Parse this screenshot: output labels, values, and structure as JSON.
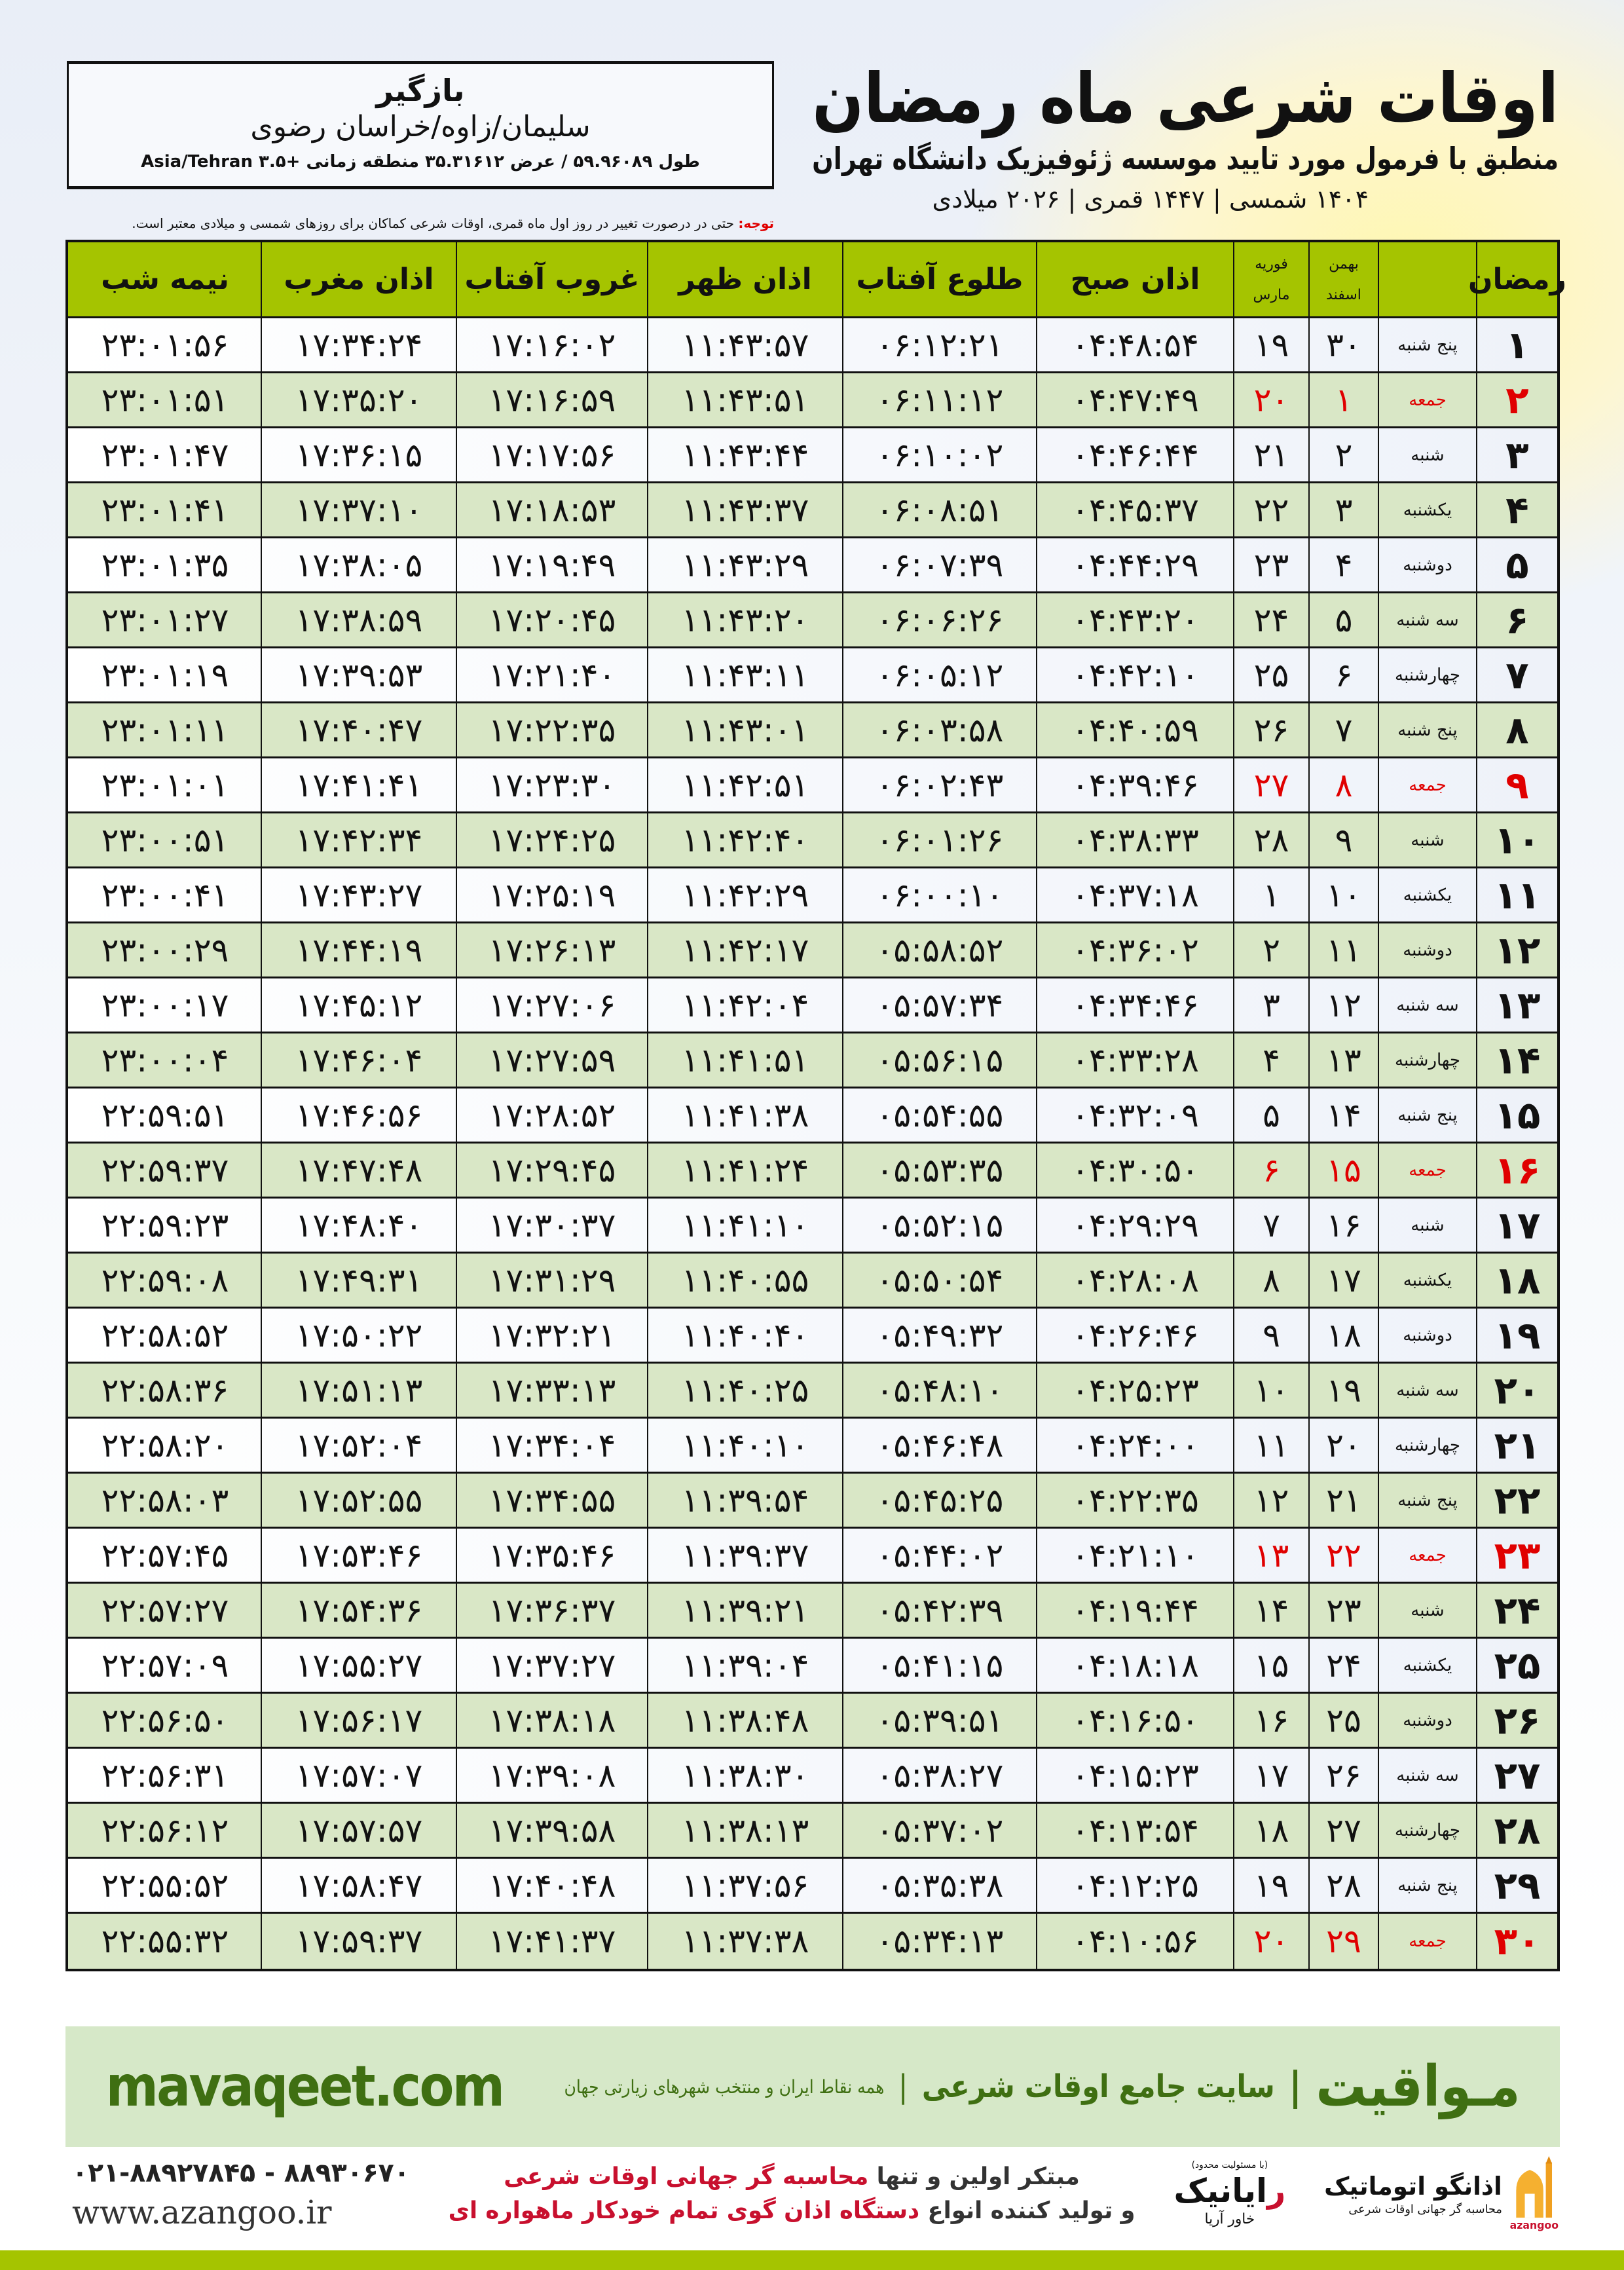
{
  "location_box": {
    "city": "بازگیر",
    "region": "سلیمان/زاوه/خراسان رضوی",
    "coordinates": "طول ۵۹.۹۶۰۸۹ / عرض ۳۵.۳۱۶۱۲ منطقه زمانی +۳.۵ Asia/Tehran"
  },
  "header": {
    "title": "اوقات شرعی ماه رمضان",
    "subtitle": "منطبق با فرمول مورد تایید موسسه ژئوفیزیک دانشگاه تهران",
    "dates": "۱۴۰۴ شمسی | ۱۴۴۷ قمری | ۲۰۲۶ میلادی"
  },
  "note": {
    "label": "توجه:",
    "text": " حتی در درصورت تغییر در روز اول ماه قمری، اوقات شرعی کماکان برای روزهای شمسی و میلادی معتبر است."
  },
  "colors": {
    "header_green": "#a5c400",
    "row_green": "#d9e7c6",
    "friday_red": "#e00000",
    "brand_green": "#3f6f12"
  },
  "table": {
    "columns": {
      "ramadan": "رمضان",
      "shamsi_top": "بهمن",
      "shamsi_bottom": "اسفند",
      "gregorian_top": "فوریه",
      "gregorian_bottom": "مارس",
      "fajr": "اذان صبح",
      "sunrise": "طلوع آفتاب",
      "dhuhr": "اذان ظهر",
      "sunset": "غروب آفتاب",
      "maghrib": "اذان مغرب",
      "midnight": "نیمه شب"
    },
    "rows": [
      {
        "ramadan": "۱",
        "weekday": "پنج شنبه",
        "shamsi": "۳۰",
        "gregorian": "۱۹",
        "fajr": "۰۴:۴۸:۵۴",
        "sunrise": "۰۶:۱۲:۲۱",
        "dhuhr": "۱۱:۴۳:۵۷",
        "sunset": "۱۷:۱۶:۰۲",
        "maghrib": "۱۷:۳۴:۲۴",
        "midnight": "۲۳:۰۱:۵۶",
        "friday": false
      },
      {
        "ramadan": "۲",
        "weekday": "جمعه",
        "shamsi": "۱",
        "gregorian": "۲۰",
        "fajr": "۰۴:۴۷:۴۹",
        "sunrise": "۰۶:۱۱:۱۲",
        "dhuhr": "۱۱:۴۳:۵۱",
        "sunset": "۱۷:۱۶:۵۹",
        "maghrib": "۱۷:۳۵:۲۰",
        "midnight": "۲۳:۰۱:۵۱",
        "friday": true
      },
      {
        "ramadan": "۳",
        "weekday": "شنبه",
        "shamsi": "۲",
        "gregorian": "۲۱",
        "fajr": "۰۴:۴۶:۴۴",
        "sunrise": "۰۶:۱۰:۰۲",
        "dhuhr": "۱۱:۴۳:۴۴",
        "sunset": "۱۷:۱۷:۵۶",
        "maghrib": "۱۷:۳۶:۱۵",
        "midnight": "۲۳:۰۱:۴۷",
        "friday": false
      },
      {
        "ramadan": "۴",
        "weekday": "یکشنبه",
        "shamsi": "۳",
        "gregorian": "۲۲",
        "fajr": "۰۴:۴۵:۳۷",
        "sunrise": "۰۶:۰۸:۵۱",
        "dhuhr": "۱۱:۴۳:۳۷",
        "sunset": "۱۷:۱۸:۵۳",
        "maghrib": "۱۷:۳۷:۱۰",
        "midnight": "۲۳:۰۱:۴۱",
        "friday": false
      },
      {
        "ramadan": "۵",
        "weekday": "دوشنبه",
        "shamsi": "۴",
        "gregorian": "۲۳",
        "fajr": "۰۴:۴۴:۲۹",
        "sunrise": "۰۶:۰۷:۳۹",
        "dhuhr": "۱۱:۴۳:۲۹",
        "sunset": "۱۷:۱۹:۴۹",
        "maghrib": "۱۷:۳۸:۰۵",
        "midnight": "۲۳:۰۱:۳۵",
        "friday": false
      },
      {
        "ramadan": "۶",
        "weekday": "سه شنبه",
        "shamsi": "۵",
        "gregorian": "۲۴",
        "fajr": "۰۴:۴۳:۲۰",
        "sunrise": "۰۶:۰۶:۲۶",
        "dhuhr": "۱۱:۴۳:۲۰",
        "sunset": "۱۷:۲۰:۴۵",
        "maghrib": "۱۷:۳۸:۵۹",
        "midnight": "۲۳:۰۱:۲۷",
        "friday": false
      },
      {
        "ramadan": "۷",
        "weekday": "چهارشنبه",
        "shamsi": "۶",
        "gregorian": "۲۵",
        "fajr": "۰۴:۴۲:۱۰",
        "sunrise": "۰۶:۰۵:۱۲",
        "dhuhr": "۱۱:۴۳:۱۱",
        "sunset": "۱۷:۲۱:۴۰",
        "maghrib": "۱۷:۳۹:۵۳",
        "midnight": "۲۳:۰۱:۱۹",
        "friday": false
      },
      {
        "ramadan": "۸",
        "weekday": "پنج شنبه",
        "shamsi": "۷",
        "gregorian": "۲۶",
        "fajr": "۰۴:۴۰:۵۹",
        "sunrise": "۰۶:۰۳:۵۸",
        "dhuhr": "۱۱:۴۳:۰۱",
        "sunset": "۱۷:۲۲:۳۵",
        "maghrib": "۱۷:۴۰:۴۷",
        "midnight": "۲۳:۰۱:۱۱",
        "friday": false
      },
      {
        "ramadan": "۹",
        "weekday": "جمعه",
        "shamsi": "۸",
        "gregorian": "۲۷",
        "fajr": "۰۴:۳۹:۴۶",
        "sunrise": "۰۶:۰۲:۴۳",
        "dhuhr": "۱۱:۴۲:۵۱",
        "sunset": "۱۷:۲۳:۳۰",
        "maghrib": "۱۷:۴۱:۴۱",
        "midnight": "۲۳:۰۱:۰۱",
        "friday": true
      },
      {
        "ramadan": "۱۰",
        "weekday": "شنبه",
        "shamsi": "۹",
        "gregorian": "۲۸",
        "fajr": "۰۴:۳۸:۳۳",
        "sunrise": "۰۶:۰۱:۲۶",
        "dhuhr": "۱۱:۴۲:۴۰",
        "sunset": "۱۷:۲۴:۲۵",
        "maghrib": "۱۷:۴۲:۳۴",
        "midnight": "۲۳:۰۰:۵۱",
        "friday": false
      },
      {
        "ramadan": "۱۱",
        "weekday": "یکشنبه",
        "shamsi": "۱۰",
        "gregorian": "۱",
        "fajr": "۰۴:۳۷:۱۸",
        "sunrise": "۰۶:۰۰:۱۰",
        "dhuhr": "۱۱:۴۲:۲۹",
        "sunset": "۱۷:۲۵:۱۹",
        "maghrib": "۱۷:۴۳:۲۷",
        "midnight": "۲۳:۰۰:۴۱",
        "friday": false
      },
      {
        "ramadan": "۱۲",
        "weekday": "دوشنبه",
        "shamsi": "۱۱",
        "gregorian": "۲",
        "fajr": "۰۴:۳۶:۰۲",
        "sunrise": "۰۵:۵۸:۵۲",
        "dhuhr": "۱۱:۴۲:۱۷",
        "sunset": "۱۷:۲۶:۱۳",
        "maghrib": "۱۷:۴۴:۱۹",
        "midnight": "۲۳:۰۰:۲۹",
        "friday": false
      },
      {
        "ramadan": "۱۳",
        "weekday": "سه شنبه",
        "shamsi": "۱۲",
        "gregorian": "۳",
        "fajr": "۰۴:۳۴:۴۶",
        "sunrise": "۰۵:۵۷:۳۴",
        "dhuhr": "۱۱:۴۲:۰۴",
        "sunset": "۱۷:۲۷:۰۶",
        "maghrib": "۱۷:۴۵:۱۲",
        "midnight": "۲۳:۰۰:۱۷",
        "friday": false
      },
      {
        "ramadan": "۱۴",
        "weekday": "چهارشنبه",
        "shamsi": "۱۳",
        "gregorian": "۴",
        "fajr": "۰۴:۳۳:۲۸",
        "sunrise": "۰۵:۵۶:۱۵",
        "dhuhr": "۱۱:۴۱:۵۱",
        "sunset": "۱۷:۲۷:۵۹",
        "maghrib": "۱۷:۴۶:۰۴",
        "midnight": "۲۳:۰۰:۰۴",
        "friday": false
      },
      {
        "ramadan": "۱۵",
        "weekday": "پنج شنبه",
        "shamsi": "۱۴",
        "gregorian": "۵",
        "fajr": "۰۴:۳۲:۰۹",
        "sunrise": "۰۵:۵۴:۵۵",
        "dhuhr": "۱۱:۴۱:۳۸",
        "sunset": "۱۷:۲۸:۵۲",
        "maghrib": "۱۷:۴۶:۵۶",
        "midnight": "۲۲:۵۹:۵۱",
        "friday": false
      },
      {
        "ramadan": "۱۶",
        "weekday": "جمعه",
        "shamsi": "۱۵",
        "gregorian": "۶",
        "fajr": "۰۴:۳۰:۵۰",
        "sunrise": "۰۵:۵۳:۳۵",
        "dhuhr": "۱۱:۴۱:۲۴",
        "sunset": "۱۷:۲۹:۴۵",
        "maghrib": "۱۷:۴۷:۴۸",
        "midnight": "۲۲:۵۹:۳۷",
        "friday": true
      },
      {
        "ramadan": "۱۷",
        "weekday": "شنبه",
        "shamsi": "۱۶",
        "gregorian": "۷",
        "fajr": "۰۴:۲۹:۲۹",
        "sunrise": "۰۵:۵۲:۱۵",
        "dhuhr": "۱۱:۴۱:۱۰",
        "sunset": "۱۷:۳۰:۳۷",
        "maghrib": "۱۷:۴۸:۴۰",
        "midnight": "۲۲:۵۹:۲۳",
        "friday": false
      },
      {
        "ramadan": "۱۸",
        "weekday": "یکشنبه",
        "shamsi": "۱۷",
        "gregorian": "۸",
        "fajr": "۰۴:۲۸:۰۸",
        "sunrise": "۰۵:۵۰:۵۴",
        "dhuhr": "۱۱:۴۰:۵۵",
        "sunset": "۱۷:۳۱:۲۹",
        "maghrib": "۱۷:۴۹:۳۱",
        "midnight": "۲۲:۵۹:۰۸",
        "friday": false
      },
      {
        "ramadan": "۱۹",
        "weekday": "دوشنبه",
        "shamsi": "۱۸",
        "gregorian": "۹",
        "fajr": "۰۴:۲۶:۴۶",
        "sunrise": "۰۵:۴۹:۳۲",
        "dhuhr": "۱۱:۴۰:۴۰",
        "sunset": "۱۷:۳۲:۲۱",
        "maghrib": "۱۷:۵۰:۲۲",
        "midnight": "۲۲:۵۸:۵۲",
        "friday": false
      },
      {
        "ramadan": "۲۰",
        "weekday": "سه شنبه",
        "shamsi": "۱۹",
        "gregorian": "۱۰",
        "fajr": "۰۴:۲۵:۲۳",
        "sunrise": "۰۵:۴۸:۱۰",
        "dhuhr": "۱۱:۴۰:۲۵",
        "sunset": "۱۷:۳۳:۱۳",
        "maghrib": "۱۷:۵۱:۱۳",
        "midnight": "۲۲:۵۸:۳۶",
        "friday": false
      },
      {
        "ramadan": "۲۱",
        "weekday": "چهارشنبه",
        "shamsi": "۲۰",
        "gregorian": "۱۱",
        "fajr": "۰۴:۲۴:۰۰",
        "sunrise": "۰۵:۴۶:۴۸",
        "dhuhr": "۱۱:۴۰:۱۰",
        "sunset": "۱۷:۳۴:۰۴",
        "maghrib": "۱۷:۵۲:۰۴",
        "midnight": "۲۲:۵۸:۲۰",
        "friday": false
      },
      {
        "ramadan": "۲۲",
        "weekday": "پنج شنبه",
        "shamsi": "۲۱",
        "gregorian": "۱۲",
        "fajr": "۰۴:۲۲:۳۵",
        "sunrise": "۰۵:۴۵:۲۵",
        "dhuhr": "۱۱:۳۹:۵۴",
        "sunset": "۱۷:۳۴:۵۵",
        "maghrib": "۱۷:۵۲:۵۵",
        "midnight": "۲۲:۵۸:۰۳",
        "friday": false
      },
      {
        "ramadan": "۲۳",
        "weekday": "جمعه",
        "shamsi": "۲۲",
        "gregorian": "۱۳",
        "fajr": "۰۴:۲۱:۱۰",
        "sunrise": "۰۵:۴۴:۰۲",
        "dhuhr": "۱۱:۳۹:۳۷",
        "sunset": "۱۷:۳۵:۴۶",
        "maghrib": "۱۷:۵۳:۴۶",
        "midnight": "۲۲:۵۷:۴۵",
        "friday": true
      },
      {
        "ramadan": "۲۴",
        "weekday": "شنبه",
        "shamsi": "۲۳",
        "gregorian": "۱۴",
        "fajr": "۰۴:۱۹:۴۴",
        "sunrise": "۰۵:۴۲:۳۹",
        "dhuhr": "۱۱:۳۹:۲۱",
        "sunset": "۱۷:۳۶:۳۷",
        "maghrib": "۱۷:۵۴:۳۶",
        "midnight": "۲۲:۵۷:۲۷",
        "friday": false
      },
      {
        "ramadan": "۲۵",
        "weekday": "یکشنبه",
        "shamsi": "۲۴",
        "gregorian": "۱۵",
        "fajr": "۰۴:۱۸:۱۸",
        "sunrise": "۰۵:۴۱:۱۵",
        "dhuhr": "۱۱:۳۹:۰۴",
        "sunset": "۱۷:۳۷:۲۷",
        "maghrib": "۱۷:۵۵:۲۷",
        "midnight": "۲۲:۵۷:۰۹",
        "friday": false
      },
      {
        "ramadan": "۲۶",
        "weekday": "دوشنبه",
        "shamsi": "۲۵",
        "gregorian": "۱۶",
        "fajr": "۰۴:۱۶:۵۰",
        "sunrise": "۰۵:۳۹:۵۱",
        "dhuhr": "۱۱:۳۸:۴۸",
        "sunset": "۱۷:۳۸:۱۸",
        "maghrib": "۱۷:۵۶:۱۷",
        "midnight": "۲۲:۵۶:۵۰",
        "friday": false
      },
      {
        "ramadan": "۲۷",
        "weekday": "سه شنبه",
        "shamsi": "۲۶",
        "gregorian": "۱۷",
        "fajr": "۰۴:۱۵:۲۳",
        "sunrise": "۰۵:۳۸:۲۷",
        "dhuhr": "۱۱:۳۸:۳۰",
        "sunset": "۱۷:۳۹:۰۸",
        "maghrib": "۱۷:۵۷:۰۷",
        "midnight": "۲۲:۵۶:۳۱",
        "friday": false
      },
      {
        "ramadan": "۲۸",
        "weekday": "چهارشنبه",
        "shamsi": "۲۷",
        "gregorian": "۱۸",
        "fajr": "۰۴:۱۳:۵۴",
        "sunrise": "۰۵:۳۷:۰۲",
        "dhuhr": "۱۱:۳۸:۱۳",
        "sunset": "۱۷:۳۹:۵۸",
        "maghrib": "۱۷:۵۷:۵۷",
        "midnight": "۲۲:۵۶:۱۲",
        "friday": false
      },
      {
        "ramadan": "۲۹",
        "weekday": "پنج شنبه",
        "shamsi": "۲۸",
        "gregorian": "۱۹",
        "fajr": "۰۴:۱۲:۲۵",
        "sunrise": "۰۵:۳۵:۳۸",
        "dhuhr": "۱۱:۳۷:۵۶",
        "sunset": "۱۷:۴۰:۴۸",
        "maghrib": "۱۷:۵۸:۴۷",
        "midnight": "۲۲:۵۵:۵۲",
        "friday": false
      },
      {
        "ramadan": "۳۰",
        "weekday": "جمعه",
        "shamsi": "۲۹",
        "gregorian": "۲۰",
        "fajr": "۰۴:۱۰:۵۶",
        "sunrise": "۰۵:۳۴:۱۳",
        "dhuhr": "۱۱:۳۷:۳۸",
        "sunset": "۱۷:۴۱:۳۷",
        "maghrib": "۱۷:۵۹:۳۷",
        "midnight": "۲۲:۵۵:۳۲",
        "friday": true
      }
    ]
  },
  "footer": {
    "brand": "مـواقیت",
    "separator": "|",
    "site_desc": "سایت جامع اوقات شرعی",
    "coverage": "همه نقاط ایران و منتخب شهرهای زیارتی جهان",
    "url": "mavaqeet.com"
  },
  "contact": {
    "phone": "۰۲۱-۸۸۹۲۷۸۴۵ - ۸۸۹۳۰۶۷۰",
    "website": "www.azangoo.ir",
    "line1_prefix": "مبتکر اولین و تنها ",
    "line1_highlight": "محاسبه گر جهانی اوقات شرعی",
    "line2_prefix": "و تولید کننده انواع ",
    "line2_highlight": "دستگاه اذان گوی تمام خودکار ماهواره ای"
  },
  "logos": {
    "raianik_ltd": "(با مسئولیت محدود)",
    "raianik_r": "ر",
    "raianik_rest": "ایانیک",
    "raianik_sub": "خاور آریا",
    "azangoo_name": "اذانگو اتوماتیک",
    "azangoo_tag": "محاسبه گر جهانی اوقات شرعی",
    "azangoo_en": "azangoo"
  }
}
